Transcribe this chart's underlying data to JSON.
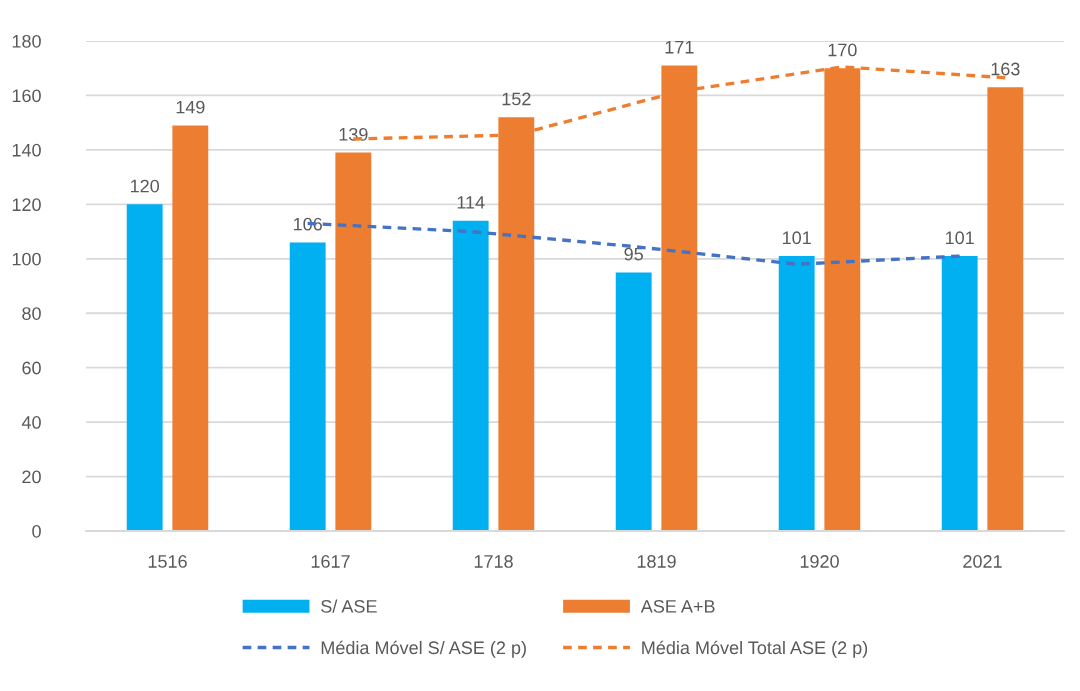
{
  "chart_data": {
    "type": "bar",
    "categories": [
      "1516",
      "1617",
      "1718",
      "1819",
      "1920",
      "2021"
    ],
    "series": [
      {
        "name": "S/ ASE",
        "color": "#00b0f0",
        "values": [
          120,
          106,
          114,
          95,
          101,
          101
        ],
        "data_labels": true
      },
      {
        "name": "ASE A+B",
        "color": "#ed7d31",
        "values": [
          149,
          139,
          152,
          171,
          170,
          163
        ],
        "data_labels": true
      },
      {
        "name": "Média Móvel S/ ASE (2 p)",
        "type": "line",
        "color": "#4472c4",
        "line_style": "dashed",
        "values": [
          null,
          113,
          110,
          104.5,
          98,
          101
        ]
      },
      {
        "name": "Média Móvel Total ASE (2 p)",
        "type": "line",
        "color": "#ed7d31",
        "line_style": "dashed",
        "values": [
          null,
          144,
          145.5,
          161.5,
          170.5,
          166.5
        ]
      }
    ],
    "ylim": [
      0,
      180
    ],
    "yticks": [
      0,
      20,
      40,
      60,
      80,
      100,
      120,
      140,
      160,
      180
    ],
    "grid": "y",
    "legend": "bottom"
  }
}
